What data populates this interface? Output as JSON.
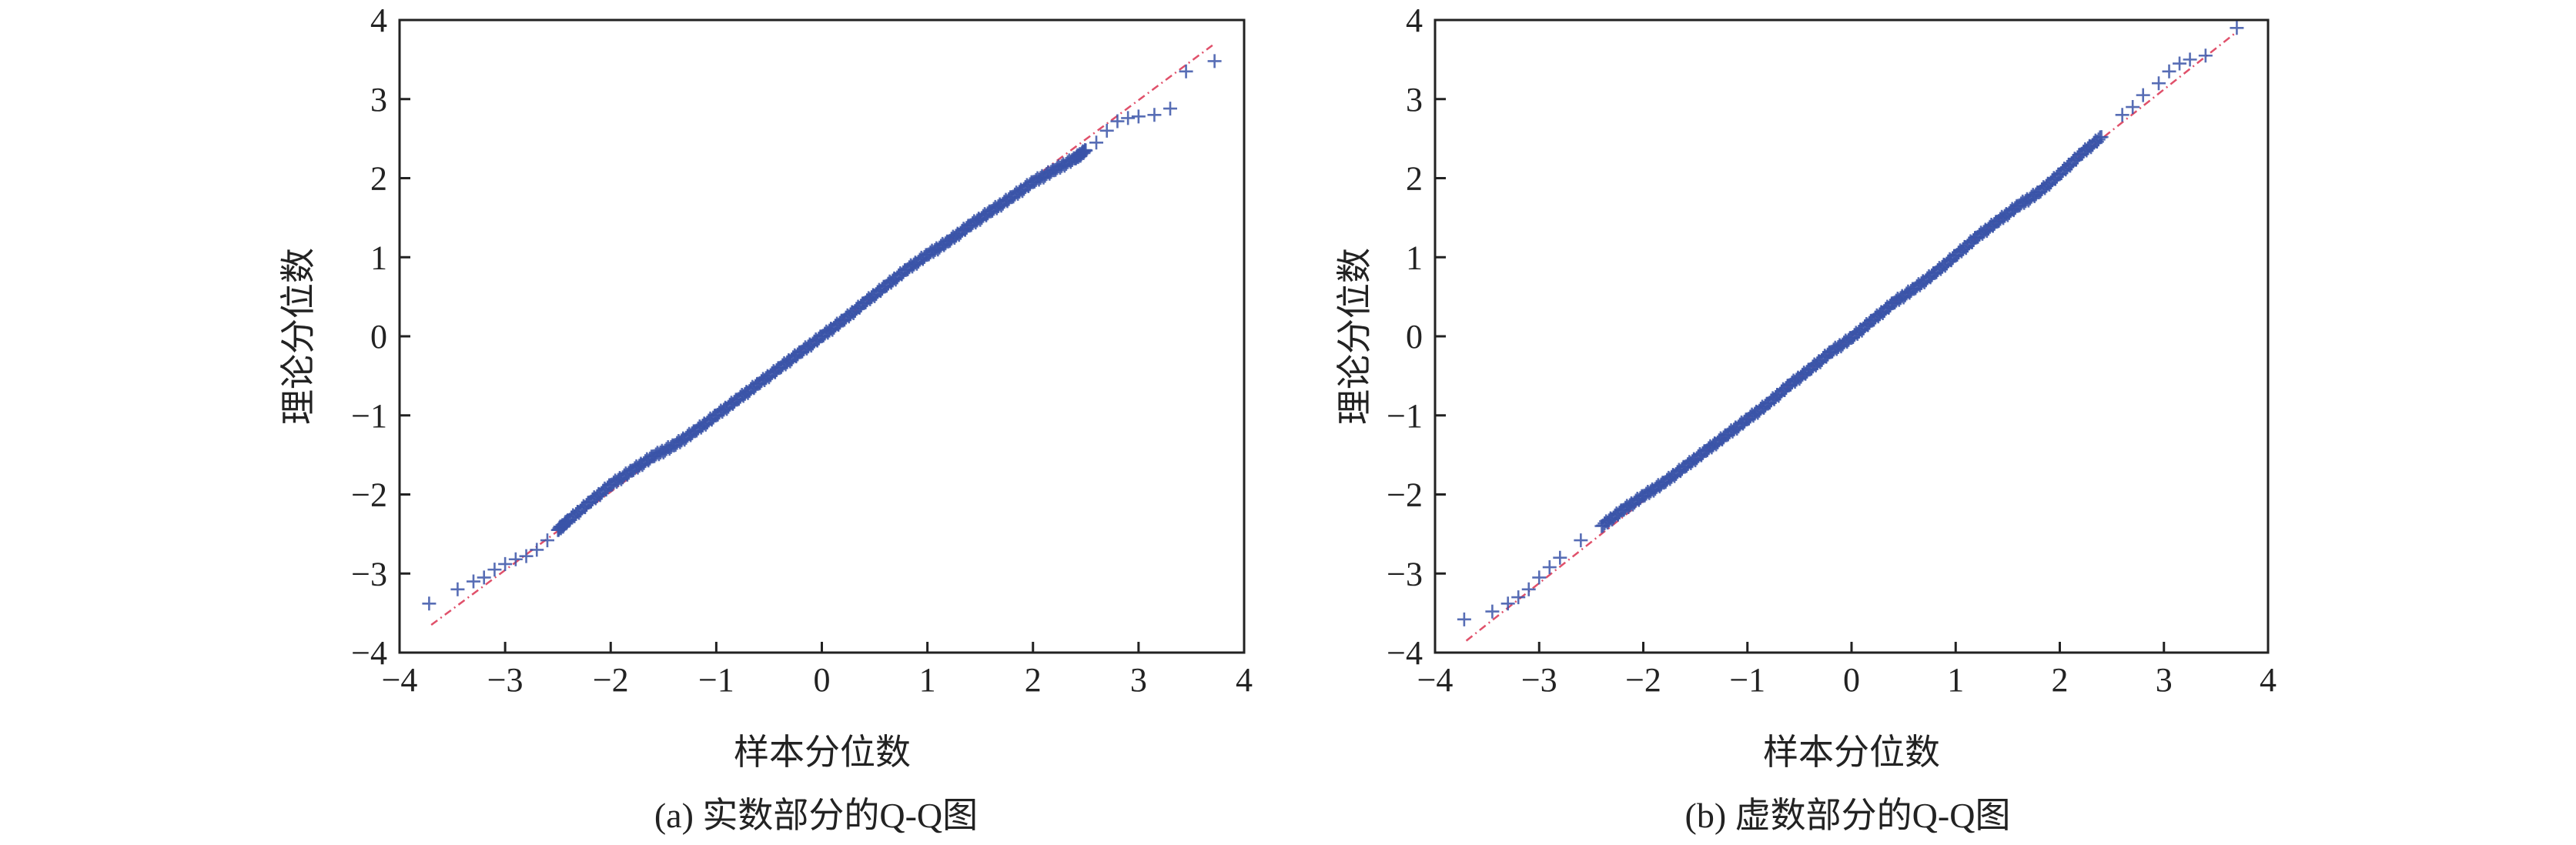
{
  "chart_data": [
    {
      "type": "scatter",
      "panel": "a",
      "caption": "(a)  实数部分的Q-Q图",
      "xlabel": "样本分位数",
      "ylabel": "理论分位数",
      "xlim": [
        -4,
        4
      ],
      "ylim": [
        -4,
        4
      ],
      "xticks": [
        "−4",
        "−3",
        "−2",
        "−1",
        "0",
        "1",
        "2",
        "3",
        "4"
      ],
      "yticks": [
        "−4",
        "−3",
        "−2",
        "−1",
        "0",
        "1",
        "2",
        "3",
        "4"
      ],
      "marker_color": "#3a53a8",
      "line_color": "#e0506a",
      "reference_line": {
        "x": [
          -3.7,
          3.7
        ],
        "y": [
          -3.65,
          3.68
        ]
      },
      "points": [
        [
          -3.72,
          -3.38
        ],
        [
          -3.45,
          -3.2
        ],
        [
          -3.3,
          -3.1
        ],
        [
          -3.2,
          -3.05
        ],
        [
          -3.1,
          -2.95
        ],
        [
          -3.0,
          -2.88
        ],
        [
          -2.9,
          -2.82
        ],
        [
          -2.8,
          -2.78
        ],
        [
          -2.7,
          -2.7
        ],
        [
          -2.6,
          -2.58
        ],
        [
          -2.5,
          -2.45
        ],
        [
          -2.4,
          -2.33
        ],
        [
          -2.2,
          -2.1
        ],
        [
          -2.0,
          -1.88
        ],
        [
          -1.8,
          -1.7
        ],
        [
          -1.6,
          -1.52
        ],
        [
          -1.4,
          -1.38
        ],
        [
          -1.2,
          -1.2
        ],
        [
          -1.0,
          -1.0
        ],
        [
          -0.8,
          -0.8
        ],
        [
          -0.6,
          -0.6
        ],
        [
          -0.4,
          -0.4
        ],
        [
          -0.2,
          -0.2
        ],
        [
          0.0,
          0.0
        ],
        [
          0.2,
          0.2
        ],
        [
          0.4,
          0.42
        ],
        [
          0.6,
          0.63
        ],
        [
          0.8,
          0.84
        ],
        [
          1.0,
          1.03
        ],
        [
          1.2,
          1.2
        ],
        [
          1.4,
          1.4
        ],
        [
          1.6,
          1.58
        ],
        [
          1.8,
          1.76
        ],
        [
          2.0,
          1.95
        ],
        [
          2.2,
          2.1
        ],
        [
          2.4,
          2.25
        ],
        [
          2.5,
          2.35
        ],
        [
          2.6,
          2.45
        ],
        [
          2.7,
          2.6
        ],
        [
          2.8,
          2.72
        ],
        [
          2.9,
          2.76
        ],
        [
          3.0,
          2.78
        ],
        [
          3.15,
          2.8
        ],
        [
          3.3,
          2.88
        ],
        [
          3.45,
          3.35
        ],
        [
          3.72,
          3.48
        ]
      ]
    },
    {
      "type": "scatter",
      "panel": "b",
      "caption": "(b)  虚数部分的Q-Q图",
      "xlabel": "样本分位数",
      "ylabel": "理论分位数",
      "xlim": [
        -4,
        4
      ],
      "ylim": [
        -4,
        4
      ],
      "xticks": [
        "−4",
        "−3",
        "−2",
        "−1",
        "0",
        "1",
        "2",
        "3",
        "4"
      ],
      "yticks": [
        "−4",
        "−3",
        "−2",
        "−1",
        "0",
        "1",
        "2",
        "3",
        "4"
      ],
      "marker_color": "#3a53a8",
      "line_color": "#e0506a",
      "reference_line": {
        "x": [
          -3.7,
          3.7
        ],
        "y": [
          -3.85,
          3.85
        ]
      },
      "points": [
        [
          -3.72,
          -3.58
        ],
        [
          -3.45,
          -3.48
        ],
        [
          -3.3,
          -3.38
        ],
        [
          -3.2,
          -3.3
        ],
        [
          -3.1,
          -3.2
        ],
        [
          -3.0,
          -3.05
        ],
        [
          -2.9,
          -2.92
        ],
        [
          -2.8,
          -2.8
        ],
        [
          -2.6,
          -2.58
        ],
        [
          -2.4,
          -2.4
        ],
        [
          -2.2,
          -2.2
        ],
        [
          -2.0,
          -2.02
        ],
        [
          -1.8,
          -1.85
        ],
        [
          -1.6,
          -1.65
        ],
        [
          -1.4,
          -1.45
        ],
        [
          -1.2,
          -1.25
        ],
        [
          -1.0,
          -1.05
        ],
        [
          -0.8,
          -0.85
        ],
        [
          -0.6,
          -0.62
        ],
        [
          -0.4,
          -0.42
        ],
        [
          -0.2,
          -0.2
        ],
        [
          0.0,
          -0.02
        ],
        [
          0.2,
          0.2
        ],
        [
          0.4,
          0.42
        ],
        [
          0.6,
          0.6
        ],
        [
          0.8,
          0.8
        ],
        [
          1.0,
          1.02
        ],
        [
          1.2,
          1.25
        ],
        [
          1.4,
          1.45
        ],
        [
          1.6,
          1.65
        ],
        [
          1.8,
          1.82
        ],
        [
          2.0,
          2.05
        ],
        [
          2.2,
          2.3
        ],
        [
          2.4,
          2.52
        ],
        [
          2.6,
          2.8
        ],
        [
          2.7,
          2.9
        ],
        [
          2.8,
          3.05
        ],
        [
          2.95,
          3.2
        ],
        [
          3.05,
          3.35
        ],
        [
          3.15,
          3.45
        ],
        [
          3.25,
          3.5
        ],
        [
          3.4,
          3.55
        ],
        [
          3.7,
          3.9
        ]
      ]
    }
  ]
}
